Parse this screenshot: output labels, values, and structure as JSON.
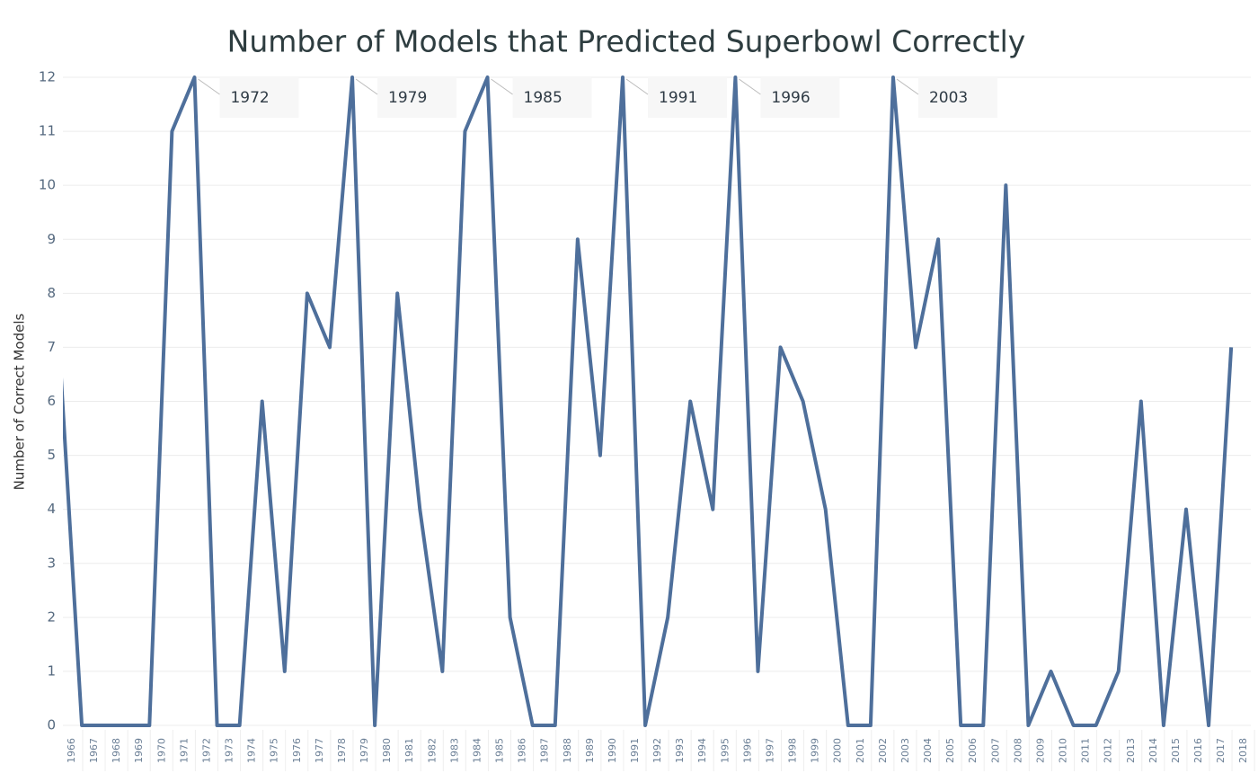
{
  "chart_data": {
    "type": "line",
    "title": "Number of Models that Predicted Superbowl Correctly",
    "y_label": "Number of Correct Models",
    "categories": [
      "1966",
      "1967",
      "1968",
      "1969",
      "1970",
      "1971",
      "1972",
      "1973",
      "1974",
      "1975",
      "1976",
      "1977",
      "1978",
      "1979",
      "1980",
      "1981",
      "1982",
      "1983",
      "1984",
      "1985",
      "1986",
      "1987",
      "1988",
      "1989",
      "1990",
      "1991",
      "1992",
      "1993",
      "1994",
      "1995",
      "1996",
      "1997",
      "1998",
      "1999",
      "2000",
      "2001",
      "2002",
      "2003",
      "2004",
      "2005",
      "2006",
      "2007",
      "2008",
      "2009",
      "2010",
      "2011",
      "2012",
      "2013",
      "2014",
      "2015",
      "2016",
      "2017",
      "2018"
    ],
    "series": [
      {
        "name": "Number of Correct Models",
        "color": "#4e6f9b",
        "values": [
          7,
          0,
          0,
          0,
          0,
          11,
          12,
          0,
          0,
          6,
          1,
          8,
          7,
          12,
          0,
          8,
          4,
          1,
          11,
          12,
          2,
          0,
          0,
          9,
          5,
          12,
          0,
          2,
          6,
          4,
          12,
          1,
          7,
          6,
          4,
          0,
          0,
          12,
          7,
          9,
          0,
          0,
          10,
          0,
          1,
          0,
          0,
          1,
          6,
          0,
          4,
          0,
          7
        ]
      }
    ],
    "annotations": [
      "1972",
      "1979",
      "1985",
      "1991",
      "1996",
      "2003"
    ],
    "ylim": [
      0,
      12
    ],
    "yticks": [
      0,
      1,
      2,
      3,
      4,
      5,
      6,
      7,
      8,
      9,
      10,
      11,
      12
    ],
    "grid": true
  }
}
